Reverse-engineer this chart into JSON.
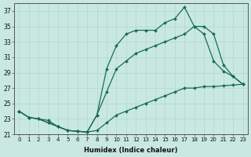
{
  "xlabel": "Humidex (Indice chaleur)",
  "background_color": "#c8e8e0",
  "line_color": "#1a6b5a",
  "grid_color": "#b0d8d0",
  "xlim": [
    -0.5,
    23.5
  ],
  "ylim": [
    21,
    38
  ],
  "yticks": [
    21,
    23,
    25,
    27,
    29,
    31,
    33,
    35,
    37
  ],
  "xticks": [
    0,
    1,
    2,
    3,
    4,
    5,
    6,
    7,
    8,
    9,
    10,
    11,
    12,
    13,
    14,
    15,
    16,
    17,
    18,
    19,
    20,
    21,
    22,
    23
  ],
  "line1_x": [
    0,
    1,
    2,
    3,
    4,
    5,
    6,
    7,
    8,
    9,
    10,
    11,
    12,
    13,
    14,
    15,
    16,
    17,
    18,
    19,
    20,
    21,
    22,
    23
  ],
  "line1_y": [
    24.0,
    23.2,
    23.0,
    22.8,
    22.0,
    21.5,
    21.4,
    21.3,
    21.5,
    22.5,
    23.5,
    24.0,
    24.5,
    25.0,
    25.5,
    26.0,
    26.5,
    27.0,
    27.0,
    27.2,
    27.2,
    27.3,
    27.4,
    27.5
  ],
  "line2_x": [
    0,
    1,
    2,
    3,
    4,
    5,
    6,
    7,
    8,
    9,
    10,
    11,
    12,
    13,
    14,
    15,
    16,
    17,
    18,
    19,
    20,
    21,
    22,
    23
  ],
  "line2_y": [
    24.0,
    23.2,
    23.0,
    22.5,
    22.0,
    21.5,
    21.4,
    21.3,
    23.5,
    26.5,
    29.5,
    30.5,
    31.5,
    32.0,
    32.5,
    33.0,
    33.5,
    34.0,
    35.0,
    35.0,
    34.0,
    30.0,
    28.5,
    27.5
  ],
  "line3_x": [
    0,
    1,
    2,
    3,
    4,
    5,
    6,
    7,
    8,
    9,
    10,
    11,
    12,
    13,
    14,
    15,
    16,
    17,
    18,
    19,
    20,
    21,
    22,
    23
  ],
  "line3_y": [
    24.0,
    23.2,
    23.0,
    22.5,
    22.0,
    21.5,
    21.4,
    21.3,
    23.5,
    29.5,
    32.5,
    34.0,
    34.5,
    34.5,
    34.5,
    35.5,
    36.0,
    37.5,
    35.0,
    34.0,
    30.5,
    29.2,
    28.5,
    27.5
  ]
}
